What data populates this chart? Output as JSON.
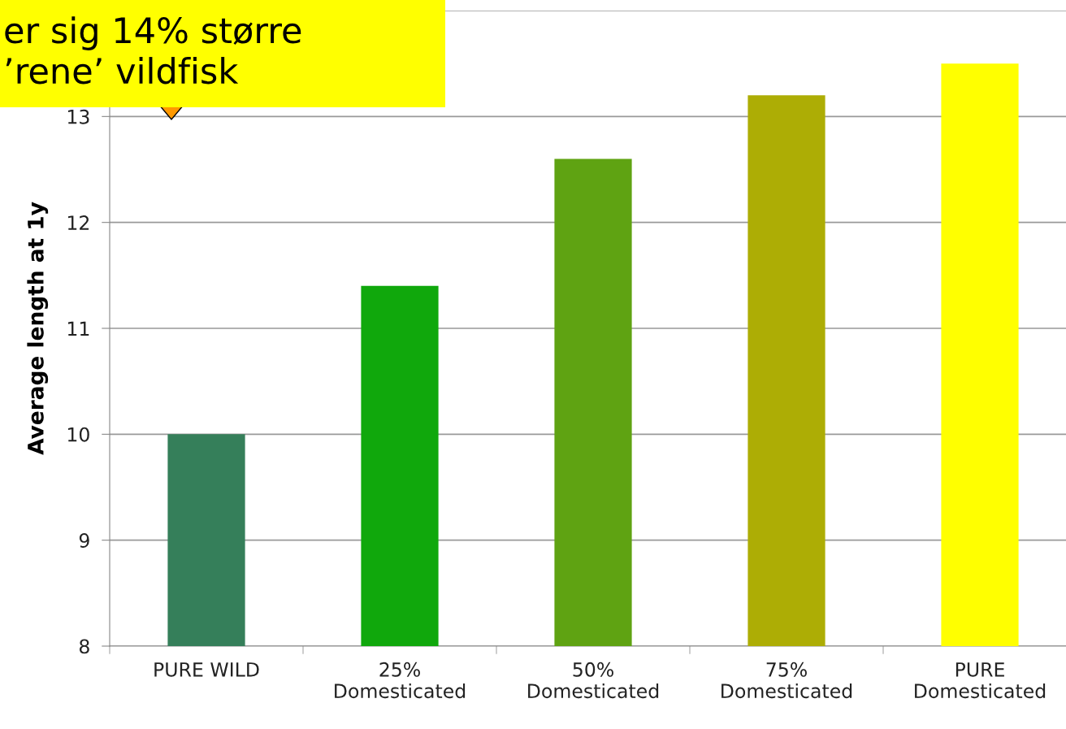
{
  "chart_data": {
    "type": "bar",
    "ylabel": "Average length at 1y",
    "categories": [
      "PURE WILD",
      "25%\nDomesticated",
      "50%\nDomesticated",
      "75%\nDomesticated",
      "PURE\nDomesticated"
    ],
    "values": [
      10.0,
      11.4,
      12.6,
      13.2,
      13.5
    ],
    "colors": [
      "#357f5a",
      "#10a80c",
      "#5fa312",
      "#adad05",
      "#ffff00"
    ],
    "ylim": [
      8,
      14
    ],
    "yticks": [
      8,
      9,
      10,
      11,
      12,
      13,
      {
        "value": 14,
        "label": null
      }
    ],
    "grid": "y",
    "annotations": [
      "er sig 14% større\n’rene’ vildfisk"
    ]
  }
}
